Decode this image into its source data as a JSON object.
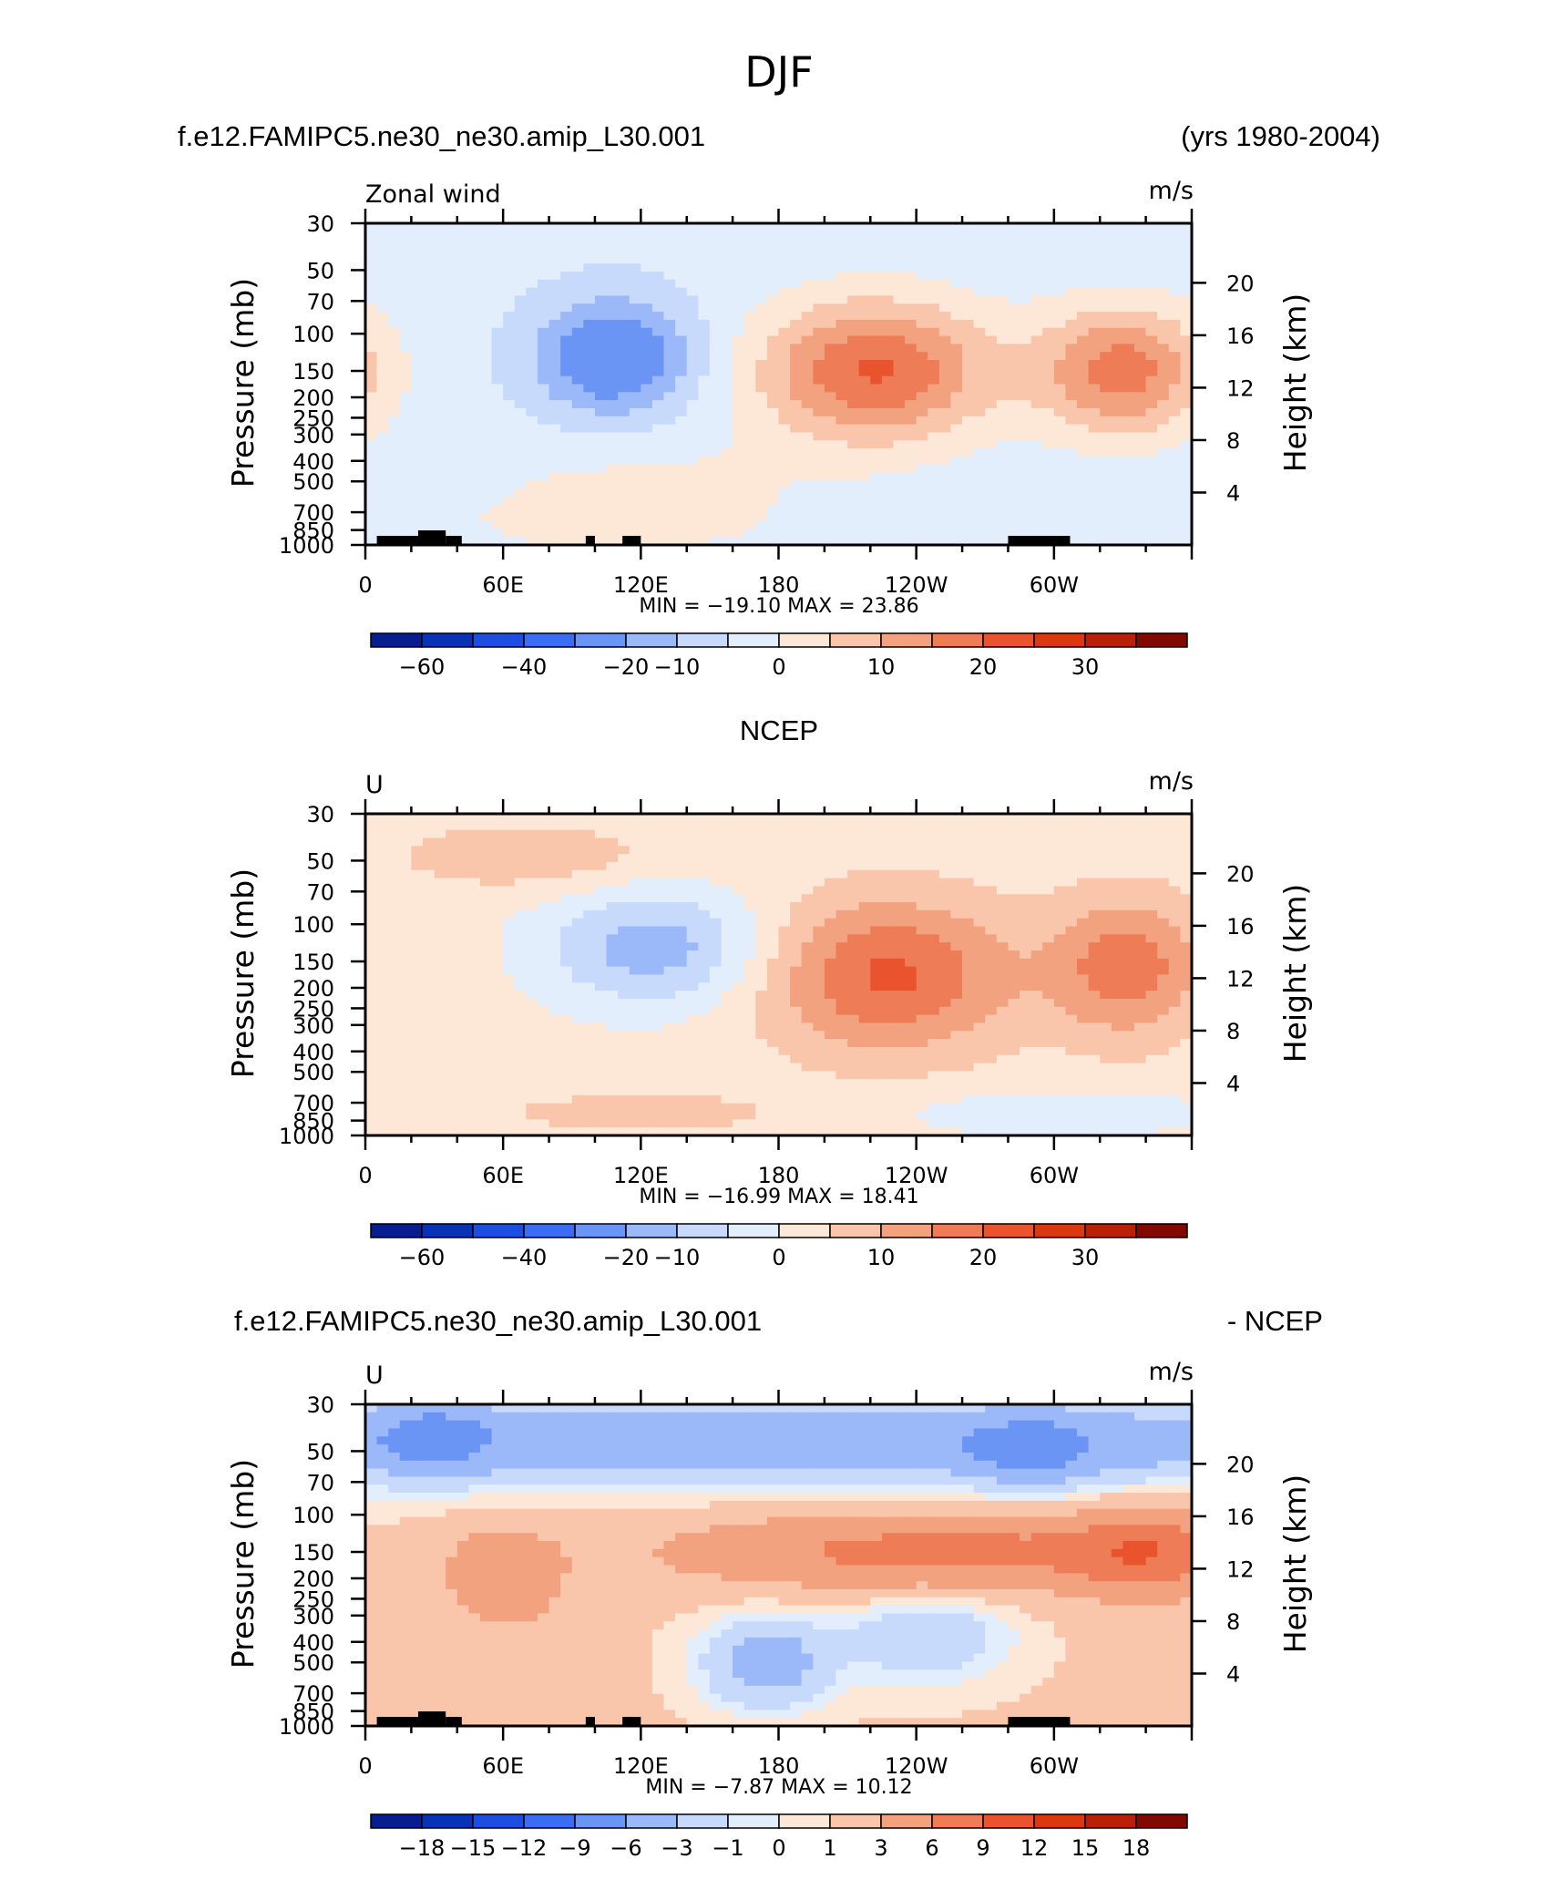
{
  "figure_title": "DJF",
  "colors": {
    "full": [
      "#081d8e",
      "#0a32b4",
      "#1d4ee0",
      "#3c6cf2",
      "#6b95f5",
      "#9bb9f8",
      "#c8dafc",
      "#e3eefc",
      "#fde8d8",
      "#f9c6ac",
      "#f3a280",
      "#ee7c56",
      "#e9532d",
      "#db3810",
      "#b82108",
      "#800a02"
    ],
    "diff": [
      "#081d8e",
      "#0a32b4",
      "#1d4ee0",
      "#3c6cf2",
      "#6b95f5",
      "#9bb9f8",
      "#c8dafc",
      "#e3eefc",
      "#fde8d8",
      "#f9c6ac",
      "#f3a280",
      "#ee7c56",
      "#e9532d",
      "#db3810",
      "#b82108",
      "#800a02"
    ]
  },
  "chart_data": [
    {
      "type": "heatmap",
      "panel_title_left": "f.e12.FAMIPC5.ne30_ne30.amip_L30.001",
      "panel_title_right": "(yrs 1980-2004)",
      "panel_title_center": "",
      "variable_label": "Zonal wind",
      "units": "m/s",
      "xlabel": "",
      "ylabel": "Pressure (mb)",
      "ylabel_right": "Height (km)",
      "x_ticks": [
        "0",
        "60E",
        "120E",
        "180",
        "120W",
        "60W"
      ],
      "x_tick_lons": [
        0,
        60,
        120,
        180,
        240,
        300
      ],
      "xlim": [
        0,
        360
      ],
      "y_ticks": [
        "30",
        "50",
        "70",
        "100",
        "150",
        "200",
        "250",
        "300",
        "400",
        "500",
        "700",
        "850",
        "1000"
      ],
      "y_tick_values": [
        30,
        50,
        70,
        100,
        150,
        200,
        250,
        300,
        400,
        500,
        700,
        850,
        1000
      ],
      "ylim": [
        1000,
        30
      ],
      "right_ticks": [
        "4",
        "8",
        "12",
        "16",
        "20"
      ],
      "right_tick_values": [
        4,
        8,
        12,
        16,
        20
      ],
      "min_max": "MIN = −19.10   MAX =   23.86",
      "min": -19.1,
      "max": 23.86,
      "colorbar_labels": [
        "−60",
        "−40",
        "−20",
        "−10",
        "0",
        "10",
        "20",
        "30"
      ],
      "colorbar_label_index": [
        1,
        3,
        5,
        6,
        8,
        10,
        12,
        14
      ],
      "colormap": "full",
      "features": [
        {
          "name": "pacific-jet",
          "lon": 222,
          "p": 150,
          "amp": 24,
          "sx": 36,
          "sy": 0.55
        },
        {
          "name": "atlantic-jet",
          "lon": 330,
          "p": 150,
          "amp": 21,
          "sx": 26,
          "sy": 0.5
        },
        {
          "name": "atlantic-jet-wrap",
          "lon": -30,
          "p": 150,
          "amp": 21,
          "sx": 26,
          "sy": 0.5
        },
        {
          "name": "indian-easterly",
          "lon": 108,
          "p": 130,
          "amp": -19,
          "sx": 24,
          "sy": 0.45
        },
        {
          "name": "lower-westerly",
          "lon": 120,
          "p": 600,
          "amp": 5,
          "sx": 55,
          "sy": 0.5
        },
        {
          "name": "low-level",
          "lon": 100,
          "p": 780,
          "amp": 3,
          "sx": 40,
          "sy": 0.2
        }
      ],
      "background": -3.5,
      "topography": [
        {
          "lon1": 5,
          "lon2": 23
        },
        {
          "lon1": 23,
          "lon2": 35
        },
        {
          "lon1": 35,
          "lon2": 42
        },
        {
          "lon1": 96,
          "lon2": 100
        },
        {
          "lon1": 112,
          "lon2": 120
        },
        {
          "lon1": 280,
          "lon2": 307
        }
      ]
    },
    {
      "type": "heatmap",
      "panel_title_left": "",
      "panel_title_right": "",
      "panel_title_center": "NCEP",
      "variable_label": "U",
      "units": "m/s",
      "xlabel": "",
      "ylabel": "Pressure (mb)",
      "ylabel_right": "Height (km)",
      "x_ticks": [
        "0",
        "60E",
        "120E",
        "180",
        "120W",
        "60W"
      ],
      "x_tick_lons": [
        0,
        60,
        120,
        180,
        240,
        300
      ],
      "xlim": [
        0,
        360
      ],
      "y_ticks": [
        "30",
        "50",
        "70",
        "100",
        "150",
        "200",
        "250",
        "300",
        "400",
        "500",
        "700",
        "850",
        "1000"
      ],
      "y_tick_values": [
        30,
        50,
        70,
        100,
        150,
        200,
        250,
        300,
        400,
        500,
        700,
        850,
        1000
      ],
      "ylim": [
        1000,
        30
      ],
      "right_ticks": [
        "4",
        "8",
        "12",
        "16",
        "20"
      ],
      "right_tick_values": [
        4,
        8,
        12,
        16,
        20
      ],
      "min_max": "MIN = −16.99   MAX =   18.41",
      "min": -16.99,
      "max": 18.41,
      "colorbar_labels": [
        "−60",
        "−40",
        "−20",
        "−10",
        "0",
        "10",
        "20",
        "30"
      ],
      "colorbar_label_index": [
        1,
        3,
        5,
        6,
        8,
        10,
        12,
        14
      ],
      "colormap": "full",
      "features": [
        {
          "name": "pacific-jet",
          "lon": 228,
          "p": 175,
          "amp": 19,
          "sx": 38,
          "sy": 0.6
        },
        {
          "name": "atlantic-jet",
          "lon": 332,
          "p": 160,
          "amp": 16,
          "sx": 24,
          "sy": 0.55
        },
        {
          "name": "indian-easterly",
          "lon": 126,
          "p": 130,
          "amp": -15,
          "sx": 34,
          "sy": 0.45
        },
        {
          "name": "upper-westerly",
          "lon": 70,
          "p": 48,
          "amp": 7,
          "sx": 40,
          "sy": 0.25
        },
        {
          "name": "low-easterly",
          "lon": 300,
          "p": 780,
          "amp": -6,
          "sx": 50,
          "sy": 0.18
        },
        {
          "name": "low-westerly",
          "lon": 120,
          "p": 780,
          "amp": 5,
          "sx": 50,
          "sy": 0.18
        }
      ],
      "background": 2,
      "topography": []
    },
    {
      "type": "heatmap",
      "panel_title_left": "f.e12.FAMIPC5.ne30_ne30.amip_L30.001",
      "panel_title_right": "- NCEP",
      "panel_title_center": "",
      "variable_label": "U",
      "units": "m/s",
      "xlabel": "",
      "ylabel": "Pressure (mb)",
      "ylabel_right": "Height (km)",
      "x_ticks": [
        "0",
        "60E",
        "120E",
        "180",
        "120W",
        "60W"
      ],
      "x_tick_lons": [
        0,
        60,
        120,
        180,
        240,
        300
      ],
      "xlim": [
        0,
        360
      ],
      "y_ticks": [
        "30",
        "50",
        "70",
        "100",
        "150",
        "200",
        "250",
        "300",
        "400",
        "500",
        "700",
        "850",
        "1000"
      ],
      "y_tick_values": [
        30,
        50,
        70,
        100,
        150,
        200,
        250,
        300,
        400,
        500,
        700,
        850,
        1000
      ],
      "ylim": [
        1000,
        30
      ],
      "right_ticks": [
        "4",
        "8",
        "12",
        "16",
        "20"
      ],
      "right_tick_values": [
        4,
        8,
        12,
        16,
        20
      ],
      "min_max": "MIN =    −7.87   MAX =   10.12",
      "min": -7.87,
      "max": 10.12,
      "colorbar_labels": [
        "−18",
        "−15",
        "−12",
        "−9",
        "−6",
        "−3",
        "−1",
        "0",
        "1",
        "3",
        "6",
        "9",
        "12",
        "15",
        "18"
      ],
      "colorbar_label_index": [
        1,
        2,
        3,
        4,
        5,
        6,
        7,
        8,
        9,
        10,
        11,
        12,
        13,
        14,
        15
      ],
      "colormap": "diff",
      "features": [
        {
          "name": "upper-negative",
          "lon": 180,
          "p": 45,
          "amp": -6,
          "sx": 400,
          "sy": 0.35
        },
        {
          "name": "upper-blob-west",
          "lon": 30,
          "p": 42,
          "amp": -4,
          "sx": 18,
          "sy": 0.3
        },
        {
          "name": "upper-blob-east",
          "lon": 290,
          "p": 50,
          "amp": -4,
          "sx": 20,
          "sy": 0.3
        },
        {
          "name": "jet-positive",
          "lon": 250,
          "p": 150,
          "amp": 6,
          "sx": 80,
          "sy": 0.3
        },
        {
          "name": "jet-positive-2",
          "lon": 340,
          "p": 150,
          "amp": 5,
          "sx": 22,
          "sy": 0.35
        },
        {
          "name": "mid-negative-pac",
          "lon": 175,
          "p": 500,
          "amp": -6,
          "sx": 20,
          "sy": 0.35
        },
        {
          "name": "mid-negative-east",
          "lon": 245,
          "p": 380,
          "amp": -4,
          "sx": 25,
          "sy": 0.35
        },
        {
          "name": "west-positive",
          "lon": 60,
          "p": 200,
          "amp": 4,
          "sx": 18,
          "sy": 0.4
        }
      ],
      "background": 1.2,
      "topography": [
        {
          "lon1": 5,
          "lon2": 23
        },
        {
          "lon1": 23,
          "lon2": 35
        },
        {
          "lon1": 35,
          "lon2": 42
        },
        {
          "lon1": 96,
          "lon2": 100
        },
        {
          "lon1": 112,
          "lon2": 120
        },
        {
          "lon1": 280,
          "lon2": 307
        }
      ]
    }
  ]
}
